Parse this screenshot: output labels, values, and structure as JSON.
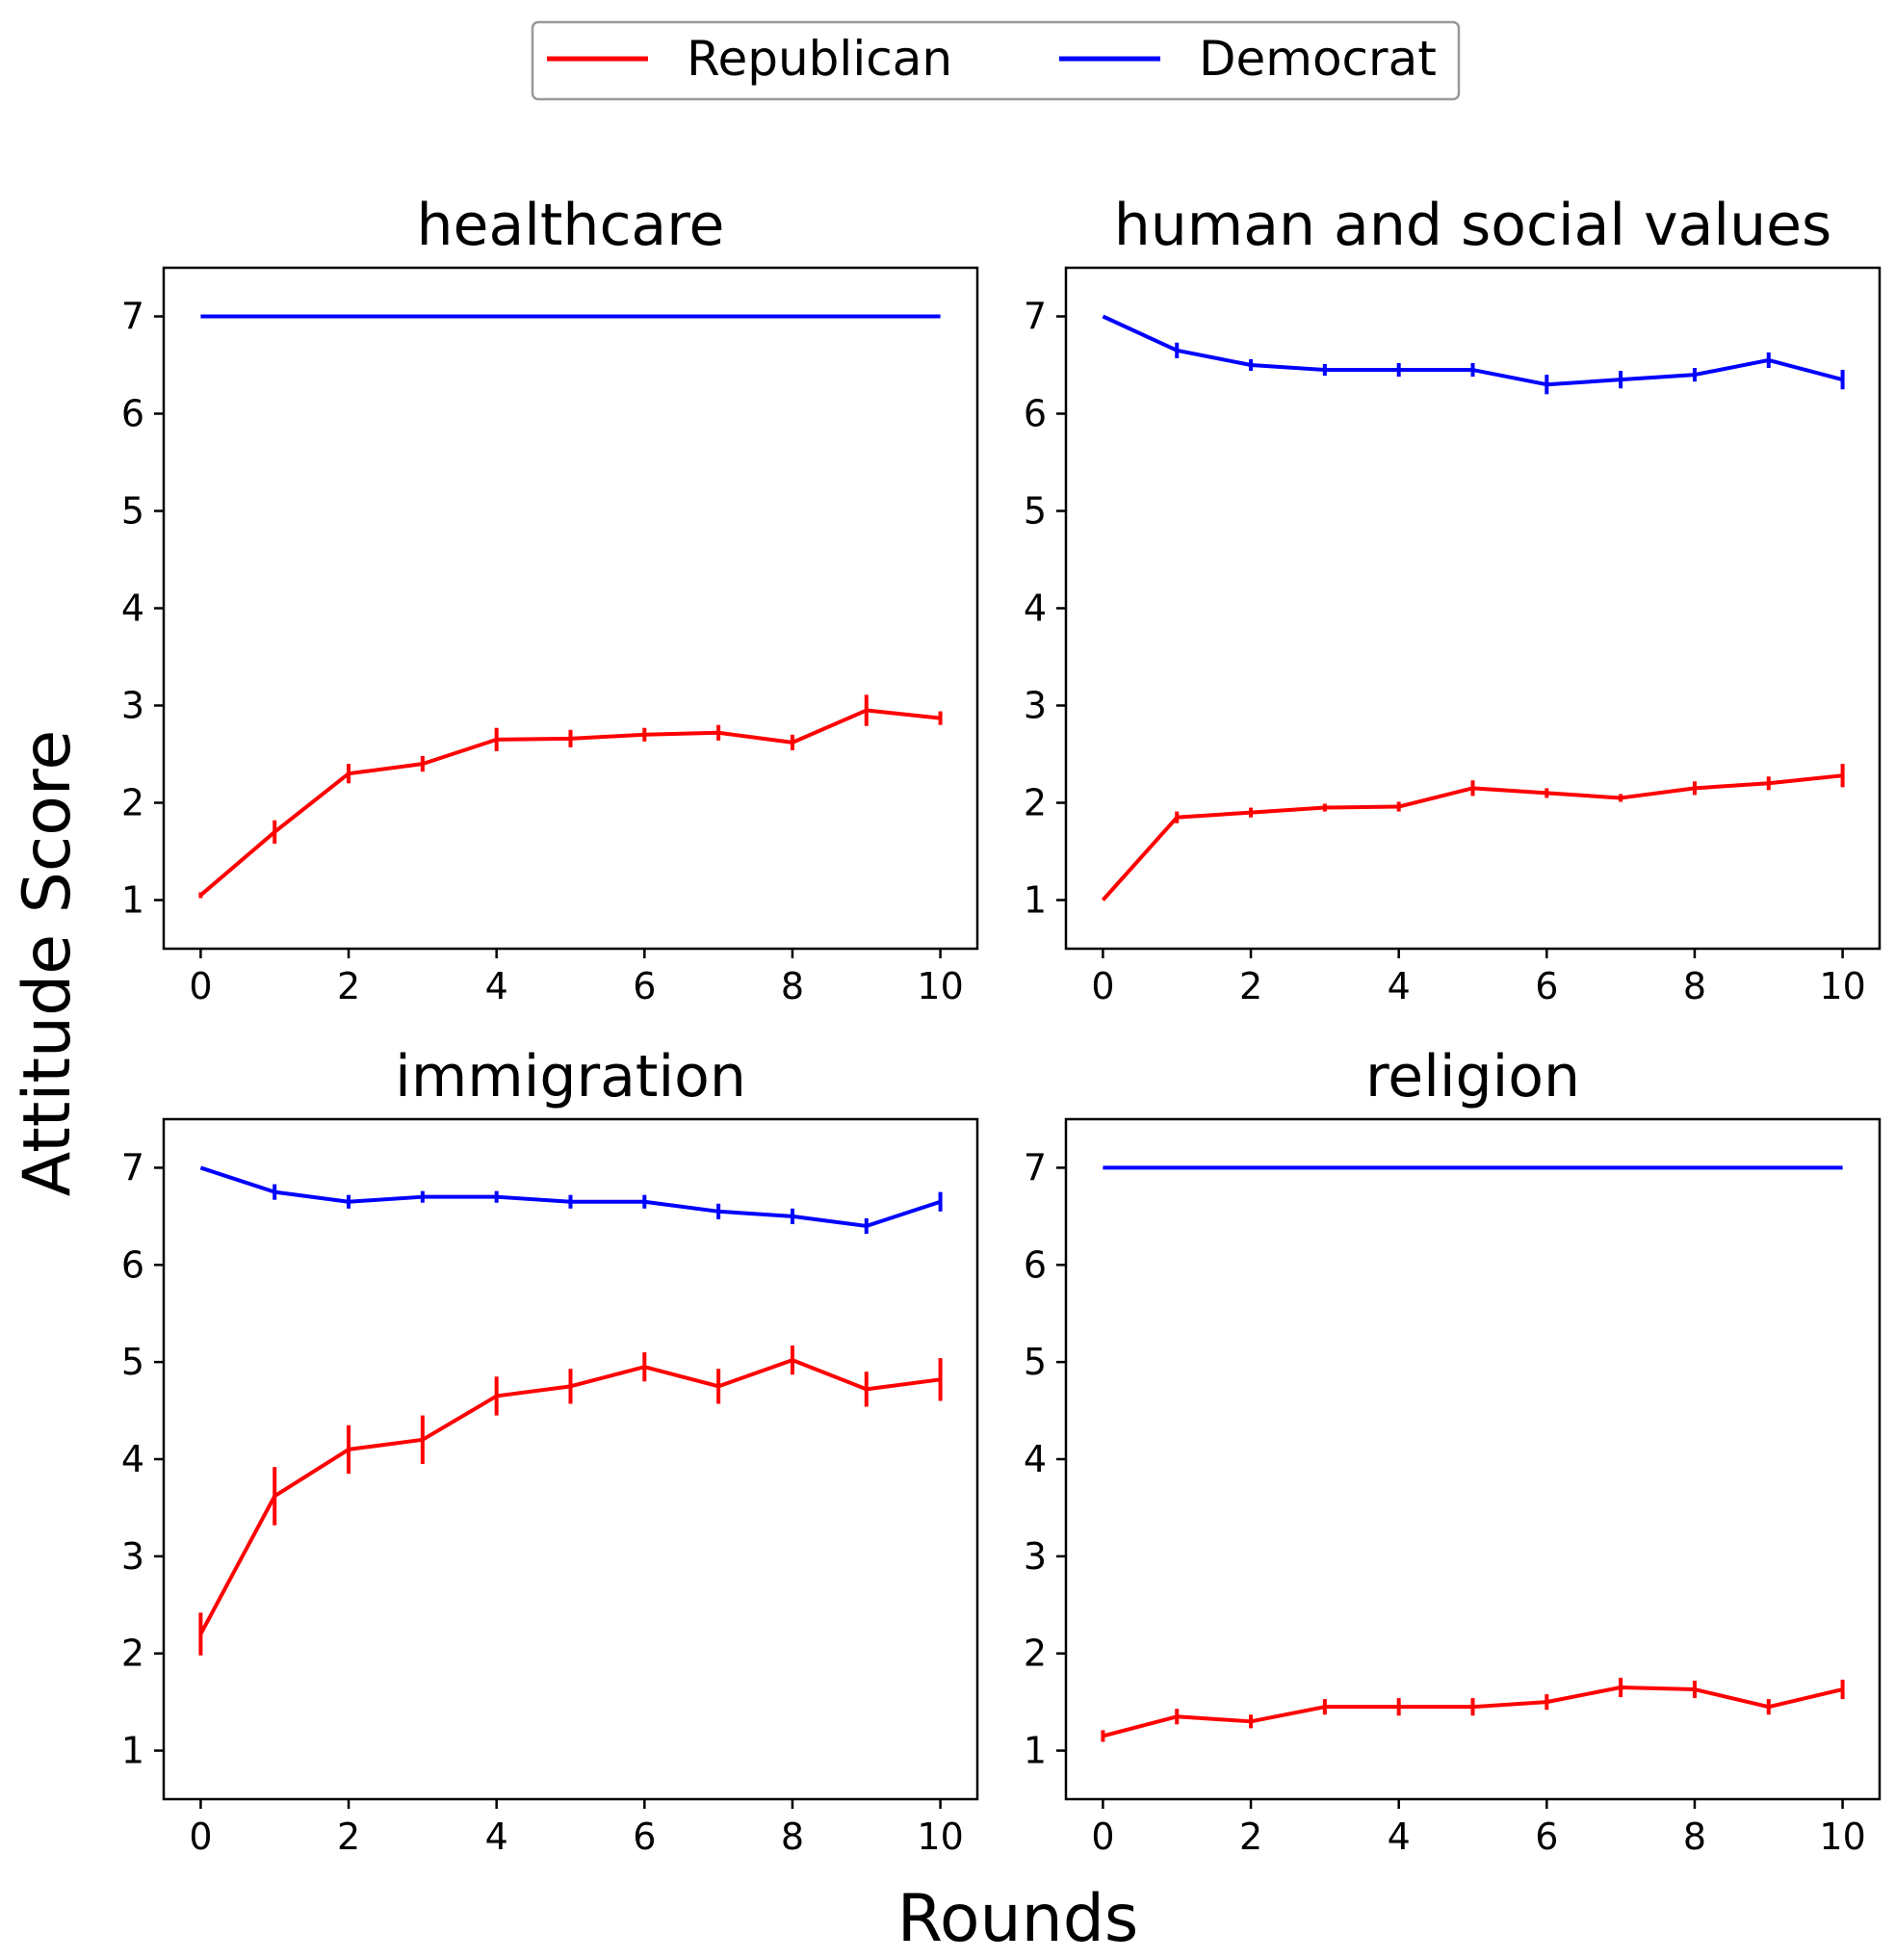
{
  "chart_data": {
    "type": "line",
    "xlabel": "Rounds",
    "ylabel": "Attitude Score",
    "legend": {
      "placement": "top-center",
      "entries": [
        {
          "name": "Republican",
          "color": "#ff0000"
        },
        {
          "name": "Democrat",
          "color": "#0000ff"
        }
      ]
    },
    "xlim": [
      -0.5,
      10.5
    ],
    "ylim": [
      0.5,
      7.5
    ],
    "xticks": [
      0,
      2,
      4,
      6,
      8,
      10
    ],
    "yticks": [
      1,
      2,
      3,
      4,
      5,
      6,
      7
    ],
    "x": [
      0,
      1,
      2,
      3,
      4,
      5,
      6,
      7,
      8,
      9,
      10
    ],
    "panels": [
      {
        "title": "healthcare",
        "series": [
          {
            "name": "Republican",
            "color": "#ff0000",
            "values": [
              1.05,
              1.7,
              2.3,
              2.4,
              2.65,
              2.66,
              2.7,
              2.72,
              2.62,
              2.95,
              2.87
            ],
            "errors": [
              0.03,
              0.12,
              0.1,
              0.08,
              0.12,
              0.09,
              0.07,
              0.08,
              0.08,
              0.16,
              0.07
            ]
          },
          {
            "name": "Democrat",
            "color": "#0000ff",
            "values": [
              7,
              7,
              7,
              7,
              7,
              7,
              7,
              7,
              7,
              7,
              7
            ],
            "errors": [
              0,
              0,
              0,
              0,
              0,
              0,
              0,
              0,
              0,
              0,
              0
            ]
          }
        ]
      },
      {
        "title": "human and social values",
        "series": [
          {
            "name": "Republican",
            "color": "#ff0000",
            "values": [
              1.0,
              1.85,
              1.9,
              1.95,
              1.96,
              2.15,
              2.1,
              2.05,
              2.15,
              2.2,
              2.28
            ],
            "errors": [
              0.0,
              0.06,
              0.05,
              0.04,
              0.05,
              0.08,
              0.05,
              0.04,
              0.07,
              0.07,
              0.12
            ]
          },
          {
            "name": "Democrat",
            "color": "#0000ff",
            "values": [
              7.0,
              6.65,
              6.5,
              6.45,
              6.45,
              6.45,
              6.3,
              6.35,
              6.4,
              6.55,
              6.35
            ],
            "errors": [
              0.0,
              0.08,
              0.06,
              0.06,
              0.07,
              0.07,
              0.1,
              0.09,
              0.07,
              0.08,
              0.1
            ]
          }
        ]
      },
      {
        "title": "immigration",
        "series": [
          {
            "name": "Republican",
            "color": "#ff0000",
            "values": [
              2.2,
              3.62,
              4.1,
              4.2,
              4.65,
              4.75,
              4.95,
              4.75,
              5.02,
              4.72,
              4.82
            ],
            "errors": [
              0.22,
              0.3,
              0.25,
              0.25,
              0.2,
              0.18,
              0.15,
              0.18,
              0.15,
              0.18,
              0.22
            ]
          },
          {
            "name": "Democrat",
            "color": "#0000ff",
            "values": [
              7.0,
              6.75,
              6.65,
              6.7,
              6.7,
              6.65,
              6.65,
              6.55,
              6.5,
              6.4,
              6.65
            ],
            "errors": [
              0.0,
              0.08,
              0.07,
              0.06,
              0.06,
              0.07,
              0.07,
              0.08,
              0.08,
              0.08,
              0.1
            ]
          }
        ]
      },
      {
        "title": "religion",
        "series": [
          {
            "name": "Republican",
            "color": "#ff0000",
            "values": [
              1.15,
              1.35,
              1.3,
              1.45,
              1.45,
              1.45,
              1.5,
              1.65,
              1.63,
              1.45,
              1.63
            ],
            "errors": [
              0.06,
              0.08,
              0.07,
              0.08,
              0.09,
              0.09,
              0.08,
              0.1,
              0.09,
              0.08,
              0.1
            ]
          },
          {
            "name": "Democrat",
            "color": "#0000ff",
            "values": [
              7,
              7,
              7,
              7,
              7,
              7,
              7,
              7,
              7,
              7,
              7
            ],
            "errors": [
              0,
              0,
              0,
              0,
              0,
              0,
              0,
              0,
              0,
              0,
              0
            ]
          }
        ]
      }
    ]
  }
}
